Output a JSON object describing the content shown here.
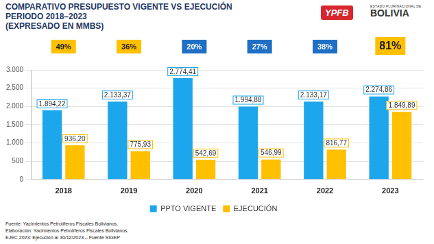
{
  "chart_data": {
    "type": "bar",
    "title": [
      "COMPARATIVO PRESUPUESTO VIGENTE VS EJECUCIÓN",
      "PERIODO 2018–2023",
      "(EXPRESADO EN MMBS)"
    ],
    "categories": [
      "2018",
      "2019",
      "2020",
      "2021",
      "2022",
      "2023"
    ],
    "series": [
      {
        "name": "PPTO VIGENTE",
        "color": "#1ca7ec",
        "values": [
          1894.22,
          2133.37,
          2774.41,
          1994.88,
          2133.17,
          2274.86
        ],
        "value_labels": [
          "1.894,22",
          "2.133,37",
          "2.774,41",
          "1.994,88",
          "2.133,17",
          "2.274,86"
        ]
      },
      {
        "name": "EJECUCIÓN",
        "color": "#ffc000",
        "values": [
          936.2,
          775.93,
          542.69,
          546.99,
          816.77,
          1849.89
        ],
        "value_labels": [
          "936,20",
          "775,93",
          "542,69",
          "546,99",
          "816,77",
          "1.849,89"
        ]
      }
    ],
    "annotations": [
      {
        "value": 49,
        "label": "49%",
        "color": "#ffc000"
      },
      {
        "value": 36,
        "label": "36%",
        "color": "#ffc000"
      },
      {
        "value": 20,
        "label": "20%",
        "color": "#1f6fc5"
      },
      {
        "value": 27,
        "label": "27%",
        "color": "#1f6fc5"
      },
      {
        "value": 38,
        "label": "38%",
        "color": "#1f6fc5"
      },
      {
        "value": 81,
        "label": "81%",
        "color": "#ffc000"
      }
    ],
    "ylim": [
      0,
      3000
    ],
    "yticks": [
      0,
      500,
      {
        "value": 1000,
        "label": "1.000"
      },
      {
        "value": 1500,
        "label": "1.500"
      },
      {
        "value": 2000,
        "label": "2.000"
      },
      {
        "value": 2500,
        "label": "2.500"
      },
      {
        "value": 3000,
        "label": "3.000"
      }
    ],
    "grid": true,
    "legend": "bottom",
    "data_labels": true
  },
  "logos": {
    "ypfb": "YPFB",
    "bolivia": [
      "ESTADO PLURINACIONAL DE",
      "BOLIVIA"
    ]
  },
  "footer": [
    "Fuente: Yacimientos Petrolíferos Fiscales Bolivianos.",
    "Elaboración: Yacimientos Petrolíferos Fiscales Bolivianos.",
    "EJEC 2023: Ejecución al 30/12/2023 – Fuente SIGEP"
  ]
}
